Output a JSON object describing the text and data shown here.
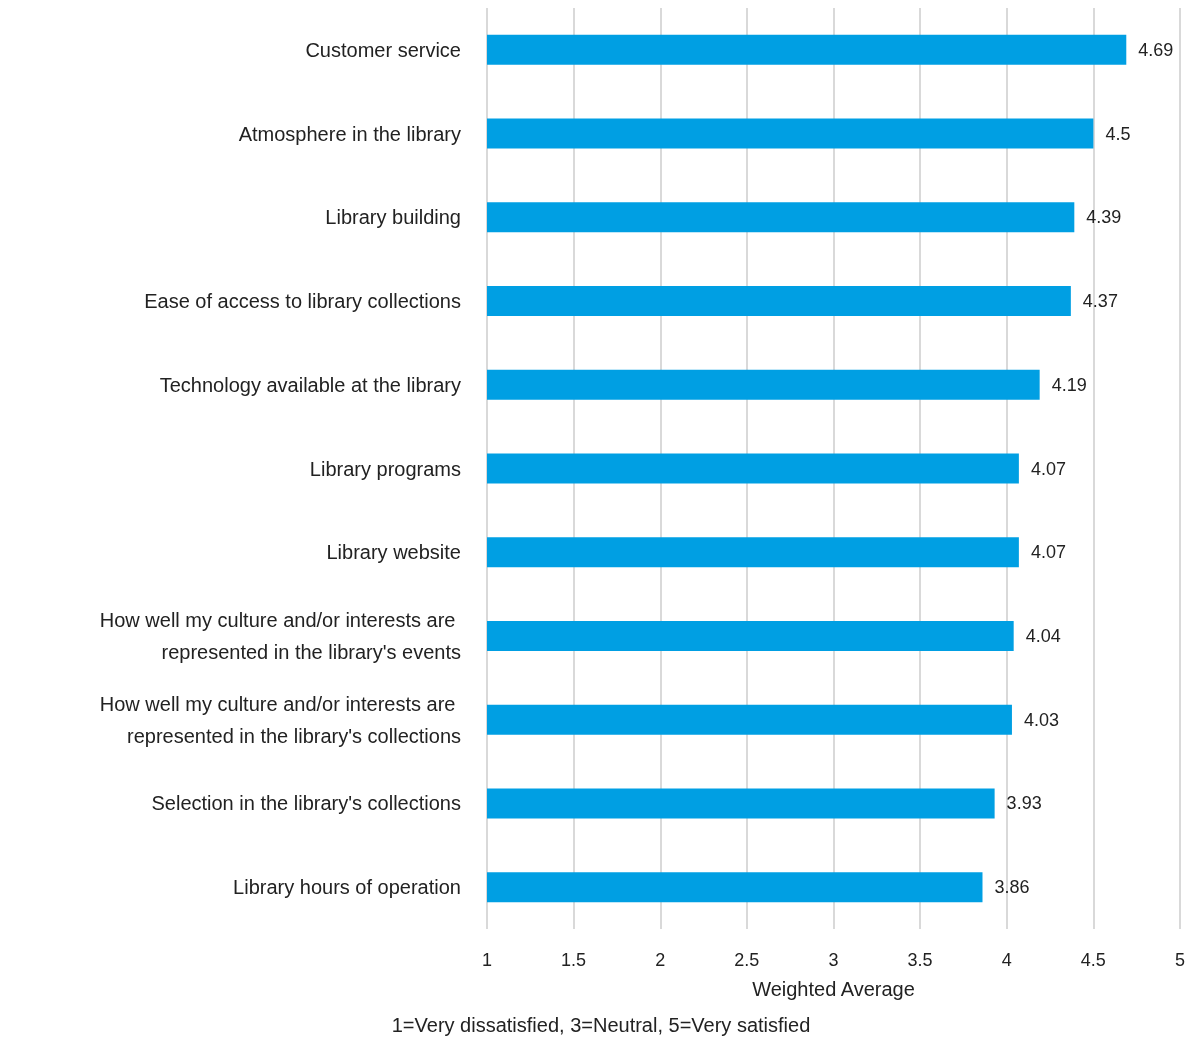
{
  "chart_data": {
    "type": "bar",
    "orientation": "horizontal",
    "categories": [
      "Customer service",
      "Atmosphere in the library",
      "Library building",
      "Ease of access to library collections",
      "Technology available at the library",
      "Library programs",
      "Library website",
      "How well my culture and/or interests are represented in the library's events",
      "How well my culture and/or interests are represented in the library's collections",
      "Selection in the library's collections",
      "Library hours of operation"
    ],
    "values": [
      4.69,
      4.5,
      4.39,
      4.37,
      4.19,
      4.07,
      4.07,
      4.04,
      4.03,
      3.93,
      3.86
    ],
    "color": "#009fe3",
    "xlim": [
      1,
      5
    ],
    "xticks": [
      1,
      1.5,
      2,
      2.5,
      3,
      3.5,
      4,
      4.5,
      5
    ],
    "xlabel": "Weighted Average",
    "annotations": [
      "1=Very dissatisfied, 3=Neutral, 5=Very satisfied"
    ],
    "grid": "x",
    "data_labels": true
  }
}
